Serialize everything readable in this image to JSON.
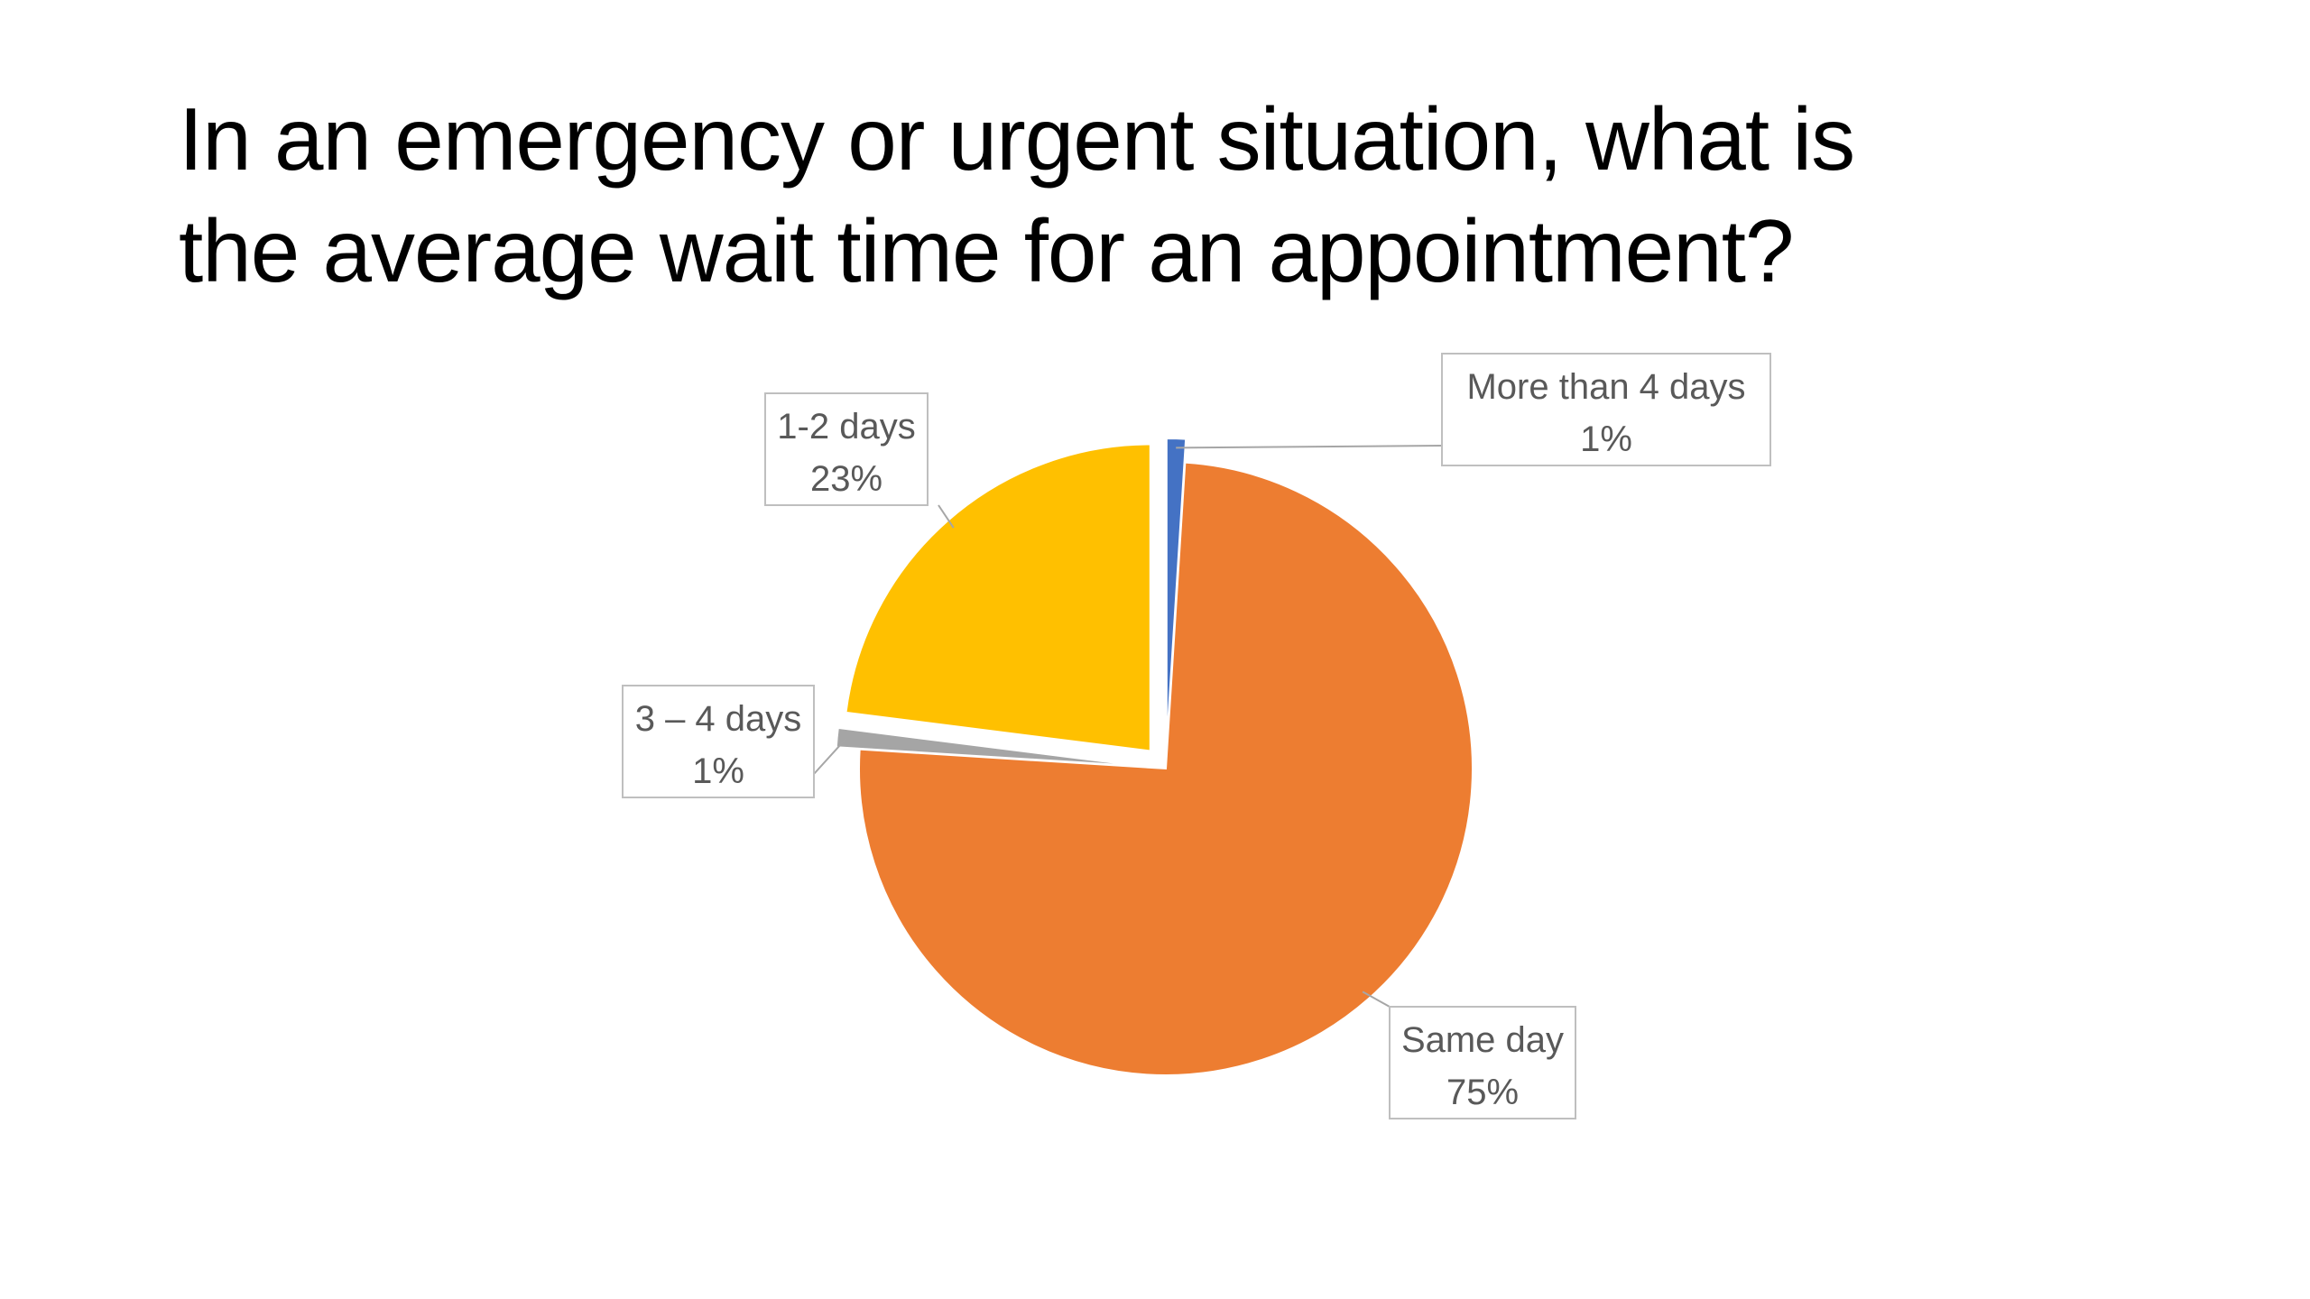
{
  "slide": {
    "title_line_1": "In an emergency or urgent situation, what is",
    "title_line_2": "the average wait time for an appointment?"
  },
  "chart_data": {
    "type": "pie",
    "title": "In an emergency or urgent situation, what is the average wait time for an appointment?",
    "categories": [
      "More than 4 days",
      "Same day",
      "3 – 4 days",
      "1-2 days"
    ],
    "values": [
      1,
      75,
      1,
      23
    ],
    "value_labels": [
      "1%",
      "75%",
      "1%",
      "23%"
    ],
    "colors": [
      "#4472C4",
      "#ED7D31",
      "#A5A5A5",
      "#FFC000"
    ],
    "exploded": [
      true,
      false,
      true,
      true
    ],
    "start_angle_deg": 0,
    "direction": "clockwise",
    "legend": "none",
    "data_labels": "outside with leader lines"
  }
}
